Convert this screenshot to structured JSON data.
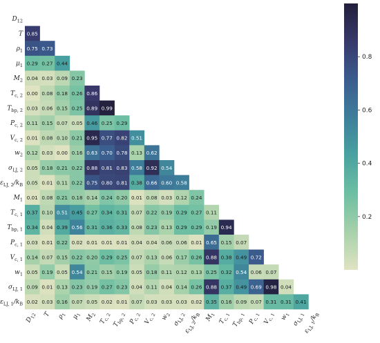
{
  "chart_data": {
    "type": "heatmap",
    "title": "",
    "triangle": "lower",
    "labels": [
      "D12",
      "T",
      "ρ1",
      "μ1",
      "M2",
      "Tc,2",
      "Tbp,2",
      "Pc,2",
      "Vc,2",
      "ω2",
      "σLJ,2",
      "εLJ,2/kB",
      "M1",
      "Tc,1",
      "Tbp,1",
      "Pc,1",
      "Vc,1",
      "ω1",
      "σLJ,1",
      "εLJ,1/kB"
    ],
    "label_markup": [
      {
        "b": "D",
        "s": "12",
        "p": ""
      },
      {
        "b": "T",
        "s": "",
        "p": ""
      },
      {
        "b": "ρ",
        "s": "1",
        "p": ""
      },
      {
        "b": "μ",
        "s": "1",
        "p": ""
      },
      {
        "b": "M",
        "s": "2",
        "p": ""
      },
      {
        "b": "T",
        "s": "c, 2",
        "p": ""
      },
      {
        "b": "T",
        "s": "bp, 2",
        "p": ""
      },
      {
        "b": "P",
        "s": "c, 2",
        "p": ""
      },
      {
        "b": "V",
        "s": "c, 2",
        "p": ""
      },
      {
        "b": "w",
        "s": "2",
        "p": ""
      },
      {
        "b": "σ",
        "s": "LJ, 2",
        "p": ""
      },
      {
        "b": "ε",
        "s": "LJ, 2",
        "p": "/k_B"
      },
      {
        "b": "M",
        "s": "1",
        "p": ""
      },
      {
        "b": "T",
        "s": "c, 1",
        "p": ""
      },
      {
        "b": "T",
        "s": "bp, 1",
        "p": ""
      },
      {
        "b": "P",
        "s": "c, 1",
        "p": ""
      },
      {
        "b": "V",
        "s": "c, 1",
        "p": ""
      },
      {
        "b": "w",
        "s": "1",
        "p": ""
      },
      {
        "b": "σ",
        "s": "LJ, 1",
        "p": ""
      },
      {
        "b": "ε",
        "s": "LJ, 1",
        "p": "/k_B"
      }
    ],
    "rows": [
      [],
      [
        0.85
      ],
      [
        0.75,
        0.73
      ],
      [
        0.29,
        0.27,
        0.44
      ],
      [
        0.04,
        0.03,
        0.09,
        0.23
      ],
      [
        0.0,
        0.08,
        0.18,
        0.26,
        0.86
      ],
      [
        0.03,
        0.06,
        0.15,
        0.25,
        0.89,
        0.99
      ],
      [
        0.11,
        0.15,
        0.07,
        0.05,
        0.46,
        0.25,
        0.29
      ],
      [
        0.01,
        0.08,
        0.1,
        0.21,
        0.95,
        0.77,
        0.82,
        0.51
      ],
      [
        0.12,
        0.03,
        0.0,
        0.16,
        0.63,
        0.7,
        0.78,
        0.13,
        0.62
      ],
      [
        0.05,
        0.18,
        0.21,
        0.22,
        0.88,
        0.81,
        0.83,
        0.58,
        0.92,
        0.54
      ],
      [
        0.05,
        0.01,
        0.11,
        0.22,
        0.75,
        0.8,
        0.81,
        0.38,
        0.66,
        0.6,
        0.58
      ],
      [
        0.01,
        0.08,
        0.21,
        0.18,
        0.14,
        0.24,
        0.2,
        0.01,
        0.08,
        0.03,
        0.12,
        0.24
      ],
      [
        0.37,
        0.1,
        0.51,
        0.45,
        0.27,
        0.34,
        0.31,
        0.07,
        0.22,
        0.19,
        0.29,
        0.27,
        0.11
      ],
      [
        0.34,
        0.04,
        0.39,
        0.56,
        0.31,
        0.36,
        0.33,
        0.08,
        0.23,
        0.13,
        0.29,
        0.29,
        0.19,
        0.94
      ],
      [
        0.03,
        0.01,
        0.22,
        0.02,
        0.01,
        0.01,
        0.01,
        0.04,
        0.04,
        0.06,
        0.06,
        0.01,
        0.65,
        0.15,
        0.07
      ],
      [
        0.14,
        0.07,
        0.15,
        0.22,
        0.2,
        0.29,
        0.25,
        0.07,
        0.13,
        0.06,
        0.17,
        0.26,
        0.88,
        0.38,
        0.49,
        0.72
      ],
      [
        0.05,
        0.19,
        0.05,
        0.54,
        0.21,
        0.15,
        0.19,
        0.05,
        0.18,
        0.11,
        0.12,
        0.13,
        0.25,
        0.32,
        0.54,
        0.06,
        0.07
      ],
      [
        0.09,
        0.01,
        0.13,
        0.23,
        0.19,
        0.27,
        0.23,
        0.04,
        0.11,
        0.04,
        0.14,
        0.26,
        0.88,
        0.37,
        0.49,
        0.69,
        0.98,
        0.04
      ],
      [
        0.02,
        0.03,
        0.16,
        0.07,
        0.05,
        0.02,
        0.01,
        0.07,
        0.03,
        0.03,
        0.03,
        0.02,
        0.35,
        0.16,
        0.09,
        0.07,
        0.31,
        0.31,
        0.41
      ]
    ],
    "colorbar": {
      "ticks": [
        0.2,
        0.4,
        0.6,
        0.8
      ],
      "tick_labels": [
        "0.2",
        "0.4",
        "0.6",
        "0.8"
      ],
      "range": [
        0.0,
        1.0
      ],
      "colormap": [
        "#e0e3c2",
        "#a6d1aa",
        "#6ebfa3",
        "#49a2a0",
        "#3e7f9b",
        "#3b5c8e",
        "#38396b",
        "#221f3c"
      ]
    }
  }
}
